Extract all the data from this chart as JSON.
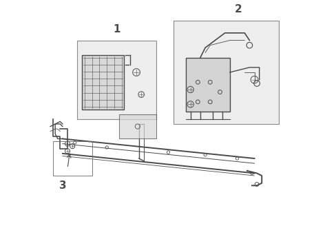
{
  "background_color": "#ffffff",
  "line_color": "#4a4a4a",
  "box_fill_color": "#e8e8e8",
  "label1": "1",
  "label2": "2",
  "label3": "3",
  "figsize": [
    4.89,
    3.6
  ],
  "dpi": 100
}
